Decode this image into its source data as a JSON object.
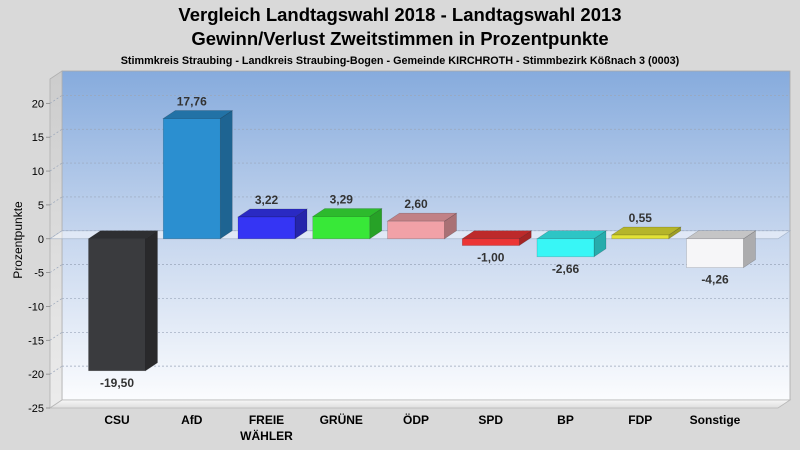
{
  "chart_data": {
    "type": "bar",
    "title": [
      "Vergleich Landtagswahl 2018 - Landtagswahl 2013",
      "Gewinn/Verlust Zweitstimmen in Prozentpunkte"
    ],
    "subtitle": "Stimmkreis Straubing - Landkreis Straubing-Bogen - Gemeinde KIRCHROTH - Stimmbezirk Kößnach 3 (0003)",
    "xlabel": "",
    "ylabel": "Prozentpunkte",
    "categories": [
      "CSU",
      "AfD",
      "FREIE WÄHLER",
      "GRÜNE",
      "ÖDP",
      "SPD",
      "BP",
      "FDP",
      "Sonstige"
    ],
    "values": [
      -19.5,
      17.76,
      3.22,
      3.29,
      2.6,
      -1.0,
      -2.66,
      0.55,
      -4.26
    ],
    "data_labels": [
      "-19,50",
      "17,76",
      "3,22",
      "3,29",
      "2,60",
      "-1,00",
      "-2,66",
      "0,55",
      "-4,26"
    ],
    "colors": [
      "#3a3b3e",
      "#2b8fd0",
      "#3535f4",
      "#38e838",
      "#f1a1a7",
      "#ec3535",
      "#38f6f6",
      "#e2e234",
      "#f6f6f8"
    ],
    "yticks": [
      20,
      15,
      10,
      5,
      0,
      -5,
      -10,
      -15,
      -20,
      -25
    ],
    "ylim": [
      -25,
      23.6
    ],
    "grid": true
  }
}
